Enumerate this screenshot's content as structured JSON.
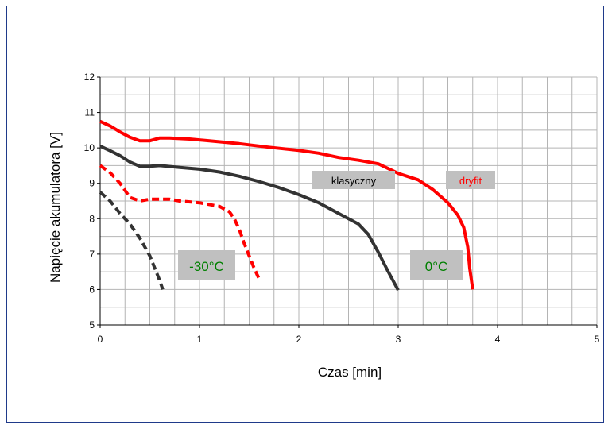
{
  "chart_data": {
    "type": "line",
    "title": "",
    "xlabel": "Czas [min]",
    "ylabel": "Napięcie akumulatora [V]",
    "xlim": [
      0,
      5
    ],
    "ylim": [
      5,
      12
    ],
    "x_ticks": [
      "0",
      "1",
      "2",
      "3",
      "4",
      "5"
    ],
    "y_ticks": [
      "5",
      "6",
      "7",
      "8",
      "9",
      "10",
      "11",
      "12"
    ],
    "grid": true,
    "series": [
      {
        "color": "#ff0000",
        "dash": "solid",
        "points": [
          [
            0,
            10.75
          ],
          [
            0.1,
            10.62
          ],
          [
            0.2,
            10.45
          ],
          [
            0.3,
            10.3
          ],
          [
            0.4,
            10.2
          ],
          [
            0.5,
            10.2
          ],
          [
            0.6,
            10.28
          ],
          [
            0.7,
            10.28
          ],
          [
            0.9,
            10.25
          ],
          [
            1.1,
            10.2
          ],
          [
            1.4,
            10.12
          ],
          [
            1.7,
            10.02
          ],
          [
            2.0,
            9.93
          ],
          [
            2.2,
            9.85
          ],
          [
            2.4,
            9.73
          ],
          [
            2.6,
            9.65
          ],
          [
            2.8,
            9.55
          ],
          [
            3.0,
            9.28
          ],
          [
            3.2,
            9.1
          ],
          [
            3.35,
            8.82
          ],
          [
            3.5,
            8.45
          ],
          [
            3.6,
            8.1
          ],
          [
            3.66,
            7.75
          ],
          [
            3.7,
            7.2
          ],
          [
            3.72,
            6.6
          ],
          [
            3.75,
            6.0
          ]
        ]
      },
      {
        "color": "#333333",
        "dash": "solid",
        "points": [
          [
            0,
            10.05
          ],
          [
            0.1,
            9.92
          ],
          [
            0.2,
            9.78
          ],
          [
            0.3,
            9.6
          ],
          [
            0.4,
            9.48
          ],
          [
            0.5,
            9.48
          ],
          [
            0.6,
            9.5
          ],
          [
            0.8,
            9.45
          ],
          [
            1.0,
            9.4
          ],
          [
            1.2,
            9.32
          ],
          [
            1.4,
            9.2
          ],
          [
            1.6,
            9.05
          ],
          [
            1.8,
            8.88
          ],
          [
            2.0,
            8.68
          ],
          [
            2.2,
            8.45
          ],
          [
            2.4,
            8.15
          ],
          [
            2.6,
            7.85
          ],
          [
            2.7,
            7.55
          ],
          [
            2.8,
            7.05
          ],
          [
            2.9,
            6.5
          ],
          [
            3.0,
            5.98
          ]
        ]
      },
      {
        "color": "#ff0000",
        "dash": "dashed",
        "points": [
          [
            0,
            9.5
          ],
          [
            0.1,
            9.3
          ],
          [
            0.2,
            9.0
          ],
          [
            0.3,
            8.6
          ],
          [
            0.4,
            8.5
          ],
          [
            0.5,
            8.55
          ],
          [
            0.6,
            8.55
          ],
          [
            0.7,
            8.55
          ],
          [
            0.8,
            8.5
          ],
          [
            1.0,
            8.45
          ],
          [
            1.2,
            8.35
          ],
          [
            1.3,
            8.2
          ],
          [
            1.35,
            8.0
          ],
          [
            1.4,
            7.7
          ],
          [
            1.45,
            7.3
          ],
          [
            1.5,
            6.95
          ],
          [
            1.55,
            6.6
          ],
          [
            1.6,
            6.3
          ]
        ]
      },
      {
        "color": "#333333",
        "dash": "dashed",
        "points": [
          [
            0,
            8.75
          ],
          [
            0.1,
            8.5
          ],
          [
            0.2,
            8.15
          ],
          [
            0.3,
            7.85
          ],
          [
            0.4,
            7.45
          ],
          [
            0.5,
            6.95
          ],
          [
            0.55,
            6.6
          ],
          [
            0.6,
            6.25
          ],
          [
            0.63,
            6.0
          ]
        ]
      }
    ],
    "annotations": [
      {
        "text": "klasyczny",
        "color": "#000000"
      },
      {
        "text": "dryfit",
        "color": "#ff0000"
      },
      {
        "text": "-30°C",
        "color": "#008000"
      },
      {
        "text": "0°C",
        "color": "#008000"
      }
    ]
  }
}
